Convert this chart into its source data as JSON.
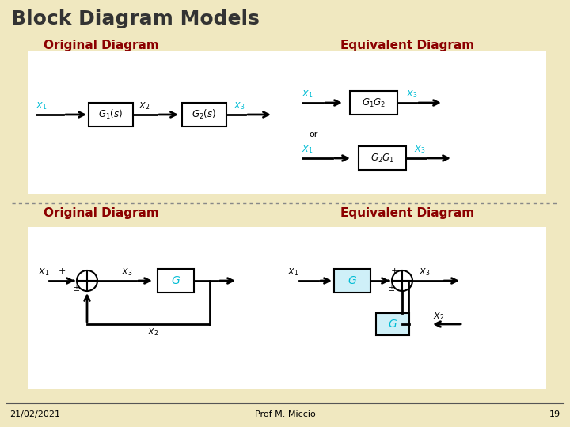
{
  "title": "Block Diagram Models",
  "title_color": "#333333",
  "title_fontsize": 18,
  "bg_color": "#f0e8c0",
  "header_color": "#8b0000",
  "cyan_color": "#00bcd4",
  "black_color": "#000000",
  "footer_date": "21/02/2021",
  "footer_center": "Prof M. Miccio",
  "footer_page": "19",
  "orig_label_1": "Original Diagram",
  "equiv_label_1": "Equivalent Diagram",
  "orig_label_2": "Original Diagram",
  "equiv_label_2": "Equivalent Diagram",
  "or_text": "or"
}
